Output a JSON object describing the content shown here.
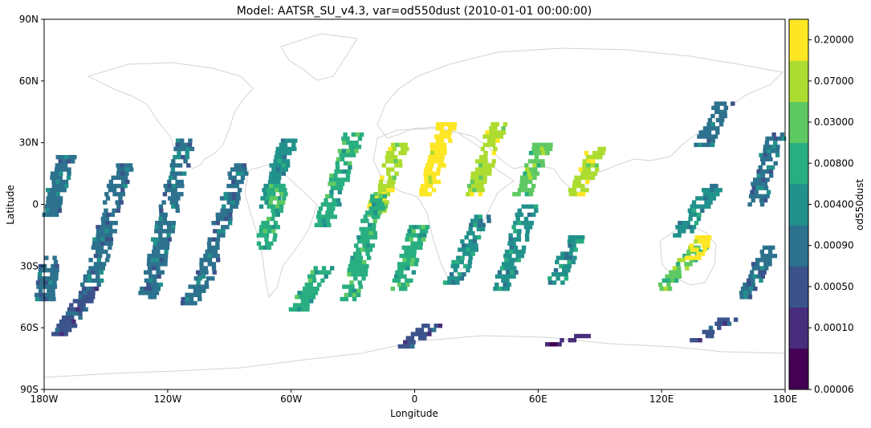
{
  "chart_data": {
    "type": "heatmap",
    "title": "Model: AATSR_SU_v4.3, var=od550dust (2010-01-01 00:00:00)",
    "xlabel": "Longitude",
    "ylabel": "Latitude",
    "xlim": [
      -180,
      180
    ],
    "ylim": [
      -90,
      90
    ],
    "xticks": [
      {
        "value": -180,
        "label": "180W"
      },
      {
        "value": -120,
        "label": "120W"
      },
      {
        "value": -60,
        "label": "60W"
      },
      {
        "value": 0,
        "label": "0"
      },
      {
        "value": 60,
        "label": "60E"
      },
      {
        "value": 120,
        "label": "120E"
      },
      {
        "value": 180,
        "label": "180E"
      }
    ],
    "yticks": [
      {
        "value": 90,
        "label": "90N"
      },
      {
        "value": 60,
        "label": "60N"
      },
      {
        "value": 30,
        "label": "30N"
      },
      {
        "value": 0,
        "label": "0"
      },
      {
        "value": -30,
        "label": "30S"
      },
      {
        "value": -60,
        "label": "60S"
      },
      {
        "value": -90,
        "label": "90S"
      }
    ],
    "colorbar": {
      "label": "od550dust",
      "ticks": [
        "0.00006",
        "0.00010",
        "0.00050",
        "0.00090",
        "0.00400",
        "0.00800",
        "0.03000",
        "0.07000",
        "0.20000"
      ],
      "colors": [
        "#440154",
        "#472d7b",
        "#3b528b",
        "#2c728e",
        "#21918c",
        "#28ae80",
        "#5ec962",
        "#addc30",
        "#fde725"
      ]
    },
    "swaths": [
      {
        "lat_top": 24,
        "lat_bot": -5,
        "lon_top": -170,
        "lon_bot": -178,
        "level": 3
      },
      {
        "lat_top": -25,
        "lat_bot": -45,
        "lon_top": -178,
        "lon_bot": -180,
        "level": 3
      },
      {
        "lat_top": 20,
        "lat_bot": -40,
        "lon_top": -142,
        "lon_bot": -158,
        "level": 3
      },
      {
        "lat_top": -40,
        "lat_bot": -62,
        "lon_top": -158,
        "lon_bot": -172,
        "level": 2
      },
      {
        "lat_top": 32,
        "lat_bot": -45,
        "lon_top": -112,
        "lon_bot": -130,
        "level": 3
      },
      {
        "lat_top": 20,
        "lat_bot": -35,
        "lon_top": -85,
        "lon_bot": -103,
        "level": 3
      },
      {
        "lat_top": -35,
        "lat_bot": -47,
        "lon_top": -103,
        "lon_bot": -110,
        "level": 3
      },
      {
        "lat_top": 32,
        "lat_bot": 0,
        "lon_top": -62,
        "lon_bot": -72,
        "level": 4
      },
      {
        "lat_top": 10,
        "lat_bot": -20,
        "lon_top": -66,
        "lon_bot": -74,
        "level": 5
      },
      {
        "lat_top": -30,
        "lat_bot": -50,
        "lon_top": -45,
        "lon_bot": -57,
        "level": 5
      },
      {
        "lat_top": 35,
        "lat_bot": -10,
        "lon_top": -30,
        "lon_bot": -45,
        "level": 5
      },
      {
        "lat_top": 30,
        "lat_bot": -5,
        "lon_top": -8,
        "lon_bot": -20,
        "level": 7
      },
      {
        "lat_top": 5,
        "lat_bot": -45,
        "lon_top": -18,
        "lon_bot": -32,
        "level": 5
      },
      {
        "lat_top": 40,
        "lat_bot": 5,
        "lon_top": 15,
        "lon_bot": 5,
        "level": 8
      },
      {
        "lat_top": -10,
        "lat_bot": -40,
        "lon_top": 2,
        "lon_bot": -8,
        "level": 5
      },
      {
        "lat_top": 40,
        "lat_bot": 5,
        "lon_top": 40,
        "lon_bot": 28,
        "level": 7
      },
      {
        "lat_top": -5,
        "lat_bot": -38,
        "lon_top": 32,
        "lon_bot": 18,
        "level": 4
      },
      {
        "lat_top": 30,
        "lat_bot": 5,
        "lon_top": 62,
        "lon_bot": 52,
        "level": 6
      },
      {
        "lat_top": 0,
        "lat_bot": -40,
        "lon_top": 55,
        "lon_bot": 42,
        "level": 4
      },
      {
        "lat_top": 28,
        "lat_bot": 5,
        "lon_top": 88,
        "lon_bot": 78,
        "level": 7
      },
      {
        "lat_top": -15,
        "lat_bot": -38,
        "lon_top": 78,
        "lon_bot": 68,
        "level": 4
      },
      {
        "lat_top": -20,
        "lat_bot": -40,
        "lon_top": 137,
        "lon_bot": 120,
        "level": 6
      },
      {
        "lat_top": -15,
        "lat_bot": -25,
        "lon_top": 140,
        "lon_bot": 135,
        "level": 8
      },
      {
        "lat_top": 10,
        "lat_bot": -15,
        "lon_top": 145,
        "lon_bot": 128,
        "level": 4
      },
      {
        "lat_top": -55,
        "lat_bot": -65,
        "lon_top": 152,
        "lon_bot": 138,
        "level": 2
      },
      {
        "lat_top": 35,
        "lat_bot": 0,
        "lon_top": 175,
        "lon_bot": 165,
        "level": 3
      },
      {
        "lat_top": -20,
        "lat_bot": -45,
        "lon_top": 172,
        "lon_bot": 160,
        "level": 3
      },
      {
        "lat_top": 50,
        "lat_bot": 30,
        "lon_top": 150,
        "lon_bot": 140,
        "level": 3
      },
      {
        "lat_top": -58,
        "lat_bot": -68,
        "lon_top": 8,
        "lon_bot": -5,
        "level": 2
      },
      {
        "lat_top": -63,
        "lat_bot": -68,
        "lon_top": 80,
        "lon_bot": 65,
        "level": 1
      }
    ]
  }
}
